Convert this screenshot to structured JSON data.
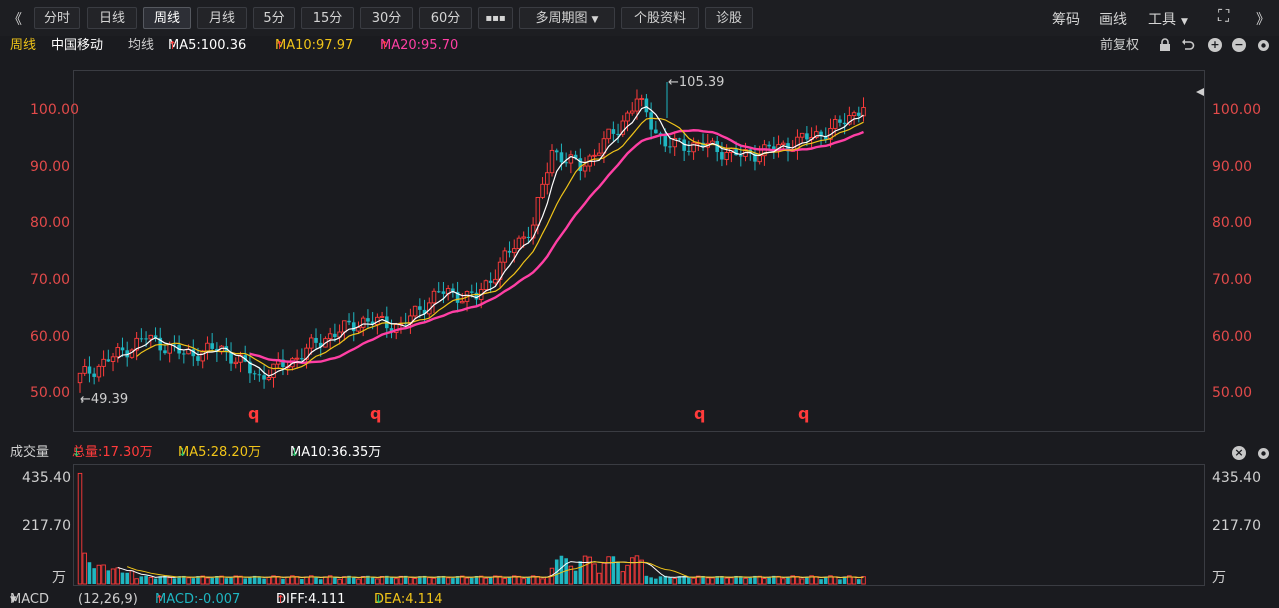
{
  "toolbar": {
    "collapse": "《",
    "tabs": [
      "分时",
      "日线",
      "周线",
      "月线",
      "5分",
      "15分",
      "30分",
      "60分"
    ],
    "more": "▪▪▪",
    "multi_period": "多周期图",
    "stock_info": "个股资料",
    "diagnosis": "诊股",
    "chips": "筹码",
    "draw": "画线",
    "tools": "工具",
    "fullscreen": "⛶",
    "expand": "》"
  },
  "info": {
    "period": "周线",
    "name": "中国移动",
    "ma_label": "均线",
    "ma5": "MA5:100.36",
    "ma10": "MA10:97.97",
    "ma20": "MA20:95.70",
    "restore": "前复权"
  },
  "price_axis": [
    "100.00",
    "90.00",
    "80.00",
    "70.00",
    "60.00",
    "50.00"
  ],
  "annotations": {
    "high": "105.39",
    "low": "49.39"
  },
  "q_marks": [
    "q",
    "q",
    "q",
    "q"
  ],
  "volume": {
    "label": "成交量",
    "total": "总量:17.30万",
    "ma5": "MA5:28.20万",
    "ma10": "MA10:36.35万",
    "axis": [
      "435.40",
      "217.70",
      "万"
    ]
  },
  "macd": {
    "label": "MACD",
    "params": "(12,26,9)",
    "macd": "MACD:-0.007",
    "diff": "DIFF:4.111",
    "dea": "DEA:4.114"
  },
  "colors": {
    "up": "#ff3b3b",
    "down": "#1fb6c1",
    "ma5": "#ffffff",
    "ma10": "#f0c419",
    "ma20": "#ff3fa4"
  }
}
